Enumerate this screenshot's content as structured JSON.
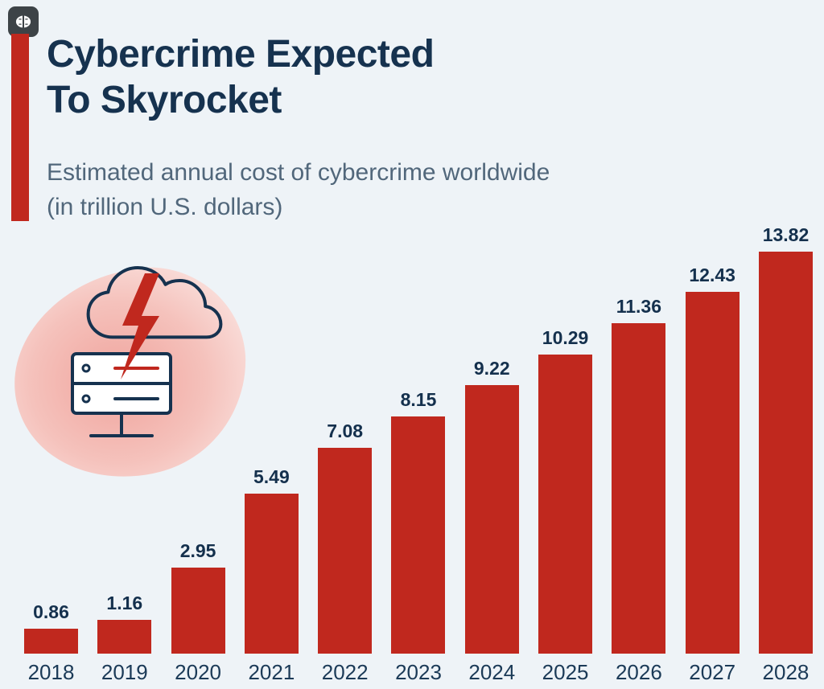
{
  "colors": {
    "background": "#eef3f7",
    "bar_red": "#c0281e",
    "title_navy": "#16324f",
    "subtitle_gray_blue": "#51677b"
  },
  "icons": {
    "logo": "brain-icon",
    "illustration": "cloud-lightning-server-illustration"
  },
  "header": {
    "title_line1": "Cybercrime Expected",
    "title_line2": "To Skyrocket",
    "subtitle_line1": "Estimated annual cost of cybercrime worldwide",
    "subtitle_line2": "(in trillion U.S. dollars)"
  },
  "chart_data": {
    "type": "bar",
    "title": "Cybercrime Expected To Skyrocket",
    "subtitle": "Estimated annual cost of cybercrime worldwide (in trillion U.S. dollars)",
    "categories": [
      "2018",
      "2019",
      "2020",
      "2021",
      "2022",
      "2023",
      "2024",
      "2025",
      "2026",
      "2027",
      "2028"
    ],
    "values": [
      0.86,
      1.16,
      2.95,
      5.49,
      7.08,
      8.15,
      9.22,
      10.29,
      11.36,
      12.43,
      13.82
    ],
    "xlabel": "",
    "ylabel": "",
    "ylim": [
      0,
      13.82
    ],
    "grid": false,
    "legend": "none",
    "bar_color": "#c0281e",
    "value_labels_shown": true
  }
}
